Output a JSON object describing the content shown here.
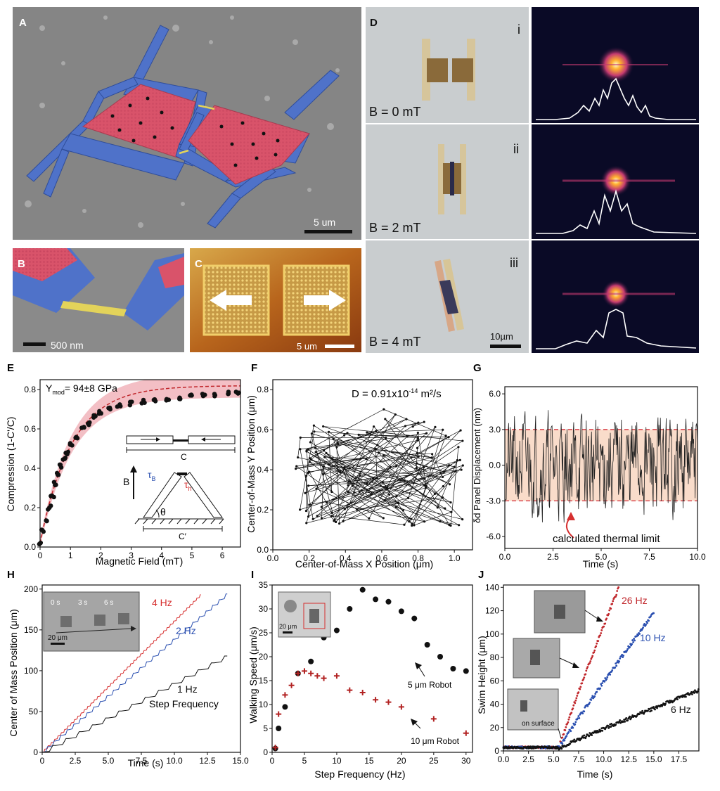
{
  "panels": {
    "A": {
      "label": "A",
      "scale": "5 um"
    },
    "B": {
      "label": "B",
      "scale": "500 nm"
    },
    "C": {
      "label": "C",
      "scale": "5 um"
    },
    "D": {
      "label": "D",
      "rows": [
        {
          "roman": "i",
          "field": "B = 0 mT"
        },
        {
          "roman": "ii",
          "field": "B = 2 mT"
        },
        {
          "roman": "iii",
          "field": "B = 4 mT"
        }
      ],
      "scale": "10µm"
    },
    "E": {
      "label": "E",
      "annotation_main": "Y",
      "annotation_sub": "mod",
      "annotation_rest": "= 94±8 GPa",
      "xlabel": "Magnetic Field (mT)",
      "ylabel": "Compression (1-C'/C)",
      "inset_c": "C",
      "inset_cprime": "C′",
      "inset_B": "B",
      "inset_tauB": "τ",
      "inset_tauB_sub": "B",
      "inset_tauh": "τ",
      "inset_tauh_sub": "h",
      "inset_theta": "θ"
    },
    "F": {
      "label": "F",
      "annotation": "D = 0.91x10",
      "annotation_exp": "-14",
      "annotation_unit": " m²/s",
      "xlabel": "Center-of-Mass X Position (μm)",
      "ylabel": "Center-of-Mass Y Position (μm)"
    },
    "G": {
      "label": "G",
      "xlabel": "Time (s)",
      "ylabel": "δd Panel Displacement (nm)",
      "annotation": "calculated thermal limit"
    },
    "H": {
      "label": "H",
      "xlabel": "Time (s)",
      "ylabel": "Center of Mass Position (μm)",
      "step_label": "Step Frequency",
      "inset_times": [
        "0 s",
        "3 s",
        "6 s"
      ],
      "inset_scale": "20 μm"
    },
    "I": {
      "label": "I",
      "xlabel": "Step Frequency (Hz)",
      "ylabel": "Walking Speed (μm/s)",
      "inset_scale": "20 μm"
    },
    "J": {
      "label": "J",
      "xlabel": "Time (s)",
      "ylabel": "Swim Height (μm)",
      "inset_label": "on surface"
    }
  },
  "colors": {
    "blue_metal": "#4f72c9",
    "red_panel": "#d9536a",
    "hinge": "#e3d35a",
    "sem_bg": "#7d7d7d",
    "band_red": "#e98a95",
    "band_peach": "#f9dcca",
    "dash_red": "#d9404a",
    "series_red": "#d62f2f",
    "series_blue": "#2a4fb0",
    "series_black": "#111111"
  },
  "chart_data": [
    {
      "panel": "E",
      "type": "scatter",
      "title": "",
      "xlabel": "Magnetic Field (mT)",
      "ylabel": "Compression (1-C'/C)",
      "xlim": [
        0,
        6.6
      ],
      "ylim": [
        0,
        0.85
      ],
      "xticks": [
        0,
        1,
        2,
        3,
        4,
        5,
        6
      ],
      "yticks": [
        0.0,
        0.2,
        0.4,
        0.6,
        0.8
      ],
      "ytick_labels": [
        "0.0",
        "0.2",
        "0.4",
        "0.6",
        "0.8"
      ],
      "x": [
        0.02,
        0.1,
        0.2,
        0.3,
        0.4,
        0.5,
        0.6,
        0.7,
        0.8,
        0.9,
        1.0,
        1.2,
        1.4,
        1.6,
        1.8,
        2.0,
        2.3,
        2.6,
        3.0,
        3.4,
        3.8,
        4.2,
        4.6,
        5.0,
        5.4,
        5.8,
        6.2,
        6.5
      ],
      "y": [
        0.02,
        0.08,
        0.14,
        0.2,
        0.26,
        0.32,
        0.37,
        0.41,
        0.45,
        0.48,
        0.52,
        0.56,
        0.6,
        0.63,
        0.66,
        0.68,
        0.7,
        0.72,
        0.73,
        0.74,
        0.75,
        0.755,
        0.76,
        0.765,
        0.77,
        0.775,
        0.78,
        0.78
      ],
      "fit_label": "model"
    },
    {
      "panel": "F",
      "type": "line",
      "title": "",
      "xlabel": "Center-of-Mass X Position (μm)",
      "ylabel": "Center-of-Mass Y Position (μm)",
      "xlim": [
        0,
        1.1
      ],
      "ylim": [
        0,
        0.85
      ],
      "xticks": [
        0.0,
        0.2,
        0.4,
        0.6,
        0.8,
        1.0
      ],
      "xtick_labels": [
        "0.0",
        "0.2",
        "0.4",
        "0.6",
        "0.8",
        "1.0"
      ],
      "yticks": [
        0.0,
        0.2,
        0.4,
        0.6,
        0.8
      ],
      "ytick_labels": [
        "0.0",
        "0.2",
        "0.4",
        "0.6",
        "0.8"
      ]
    },
    {
      "panel": "G",
      "type": "line",
      "title": "",
      "xlabel": "Time (s)",
      "ylabel": "δd Panel Displacement (nm)",
      "xlim": [
        0,
        10
      ],
      "ylim": [
        -7,
        6.6
      ],
      "xticks": [
        0,
        2.5,
        5,
        7.5,
        10
      ],
      "xtick_labels": [
        "0.0",
        "2.5",
        "5.0",
        "7.5",
        "10.0"
      ],
      "yticks": [
        -6,
        -3,
        0,
        3,
        6
      ],
      "ytick_labels": [
        "-6.0",
        "-3.0",
        "0.0",
        "3.0",
        "6.0"
      ],
      "threshold": [
        -3,
        3
      ]
    },
    {
      "panel": "H",
      "type": "line",
      "title": "",
      "xlabel": "Time (s)",
      "ylabel": "Center of Mass Position (μm)",
      "xlim": [
        0,
        15
      ],
      "ylim": [
        0,
        205
      ],
      "xticks": [
        0,
        2.5,
        5,
        7.5,
        10,
        12.5,
        15
      ],
      "xtick_labels": [
        "0",
        "2.5",
        "5.0",
        "7.5",
        "10.0",
        "12.5",
        "15.0"
      ],
      "yticks": [
        0,
        50,
        100,
        150,
        200
      ],
      "ytick_labels": [
        "0",
        "50",
        "100",
        "150",
        "200"
      ],
      "series": [
        {
          "name": "4 Hz",
          "color": "#d62f2f",
          "t_end": 12,
          "y_end": 193,
          "steps": 4
        },
        {
          "name": "2 Hz",
          "color": "#2a4fb0",
          "t_end": 14,
          "y_end": 194,
          "steps": 2
        },
        {
          "name": "1 Hz",
          "color": "#111111",
          "t_end": 14,
          "y_end": 118,
          "steps": 1
        }
      ]
    },
    {
      "panel": "I",
      "type": "scatter",
      "title": "",
      "xlabel": "Step Frequency (Hz)",
      "ylabel": "Walking Speed (μm/s)",
      "xlim": [
        0,
        31
      ],
      "ylim": [
        0,
        35
      ],
      "xticks": [
        0,
        5,
        10,
        15,
        20,
        25,
        30
      ],
      "xtick_labels": [
        "0",
        "5",
        "10",
        "15",
        "20",
        "25",
        "30"
      ],
      "yticks": [
        0,
        5,
        10,
        15,
        20,
        25,
        30,
        35
      ],
      "ytick_labels": [
        "0",
        "5",
        "10",
        "15",
        "20",
        "25",
        "30",
        "35"
      ],
      "series": [
        {
          "name": "5 μm Robot",
          "marker": "dot",
          "color": "#111111",
          "x": [
            0.5,
            1,
            2,
            4,
            6,
            8,
            10,
            12,
            14,
            16,
            18,
            20,
            22,
            24,
            26,
            28,
            30
          ],
          "y": [
            0.8,
            5,
            9.5,
            16.5,
            19,
            24,
            25.5,
            30,
            34,
            32,
            31.5,
            29.5,
            28,
            22.5,
            20,
            17.5,
            17
          ]
        },
        {
          "name": "10 μm Robot",
          "marker": "plus",
          "color": "#b22222",
          "x": [
            0.5,
            1,
            2,
            3,
            4,
            5,
            6,
            7,
            8,
            10,
            12,
            14,
            16,
            18,
            20,
            25,
            30
          ],
          "y": [
            1,
            8,
            12,
            14,
            16.5,
            17,
            16.5,
            16,
            15.5,
            16,
            13,
            12.5,
            11,
            10.5,
            9.5,
            7,
            4
          ]
        }
      ]
    },
    {
      "panel": "J",
      "type": "scatter",
      "title": "",
      "xlabel": "Time (s)",
      "ylabel": "Swim Height (μm)",
      "xlim": [
        0,
        19.5
      ],
      "ylim": [
        0,
        142
      ],
      "xticks": [
        0,
        2.5,
        5,
        7.5,
        10,
        12.5,
        15,
        17.5
      ],
      "xtick_labels": [
        "0.0",
        "2.5",
        "5.0",
        "7.5",
        "10.0",
        "12.5",
        "15.0",
        "17.5"
      ],
      "yticks": [
        0,
        20,
        40,
        60,
        80,
        100,
        120,
        140
      ],
      "ytick_labels": [
        "0",
        "20",
        "40",
        "60",
        "80",
        "100",
        "120",
        "140"
      ],
      "series": [
        {
          "name": "26 Hz",
          "color": "#c0262b",
          "t_start": 5.5,
          "t_end": 11.5,
          "y_end": 140
        },
        {
          "name": "10 Hz",
          "color": "#2a4fb0",
          "t_start": 5.5,
          "t_end": 15,
          "y_end": 118
        },
        {
          "name": "6 Hz",
          "color": "#111111",
          "t_start": 5.5,
          "t_end": 19.5,
          "y_end": 52
        }
      ]
    }
  ]
}
